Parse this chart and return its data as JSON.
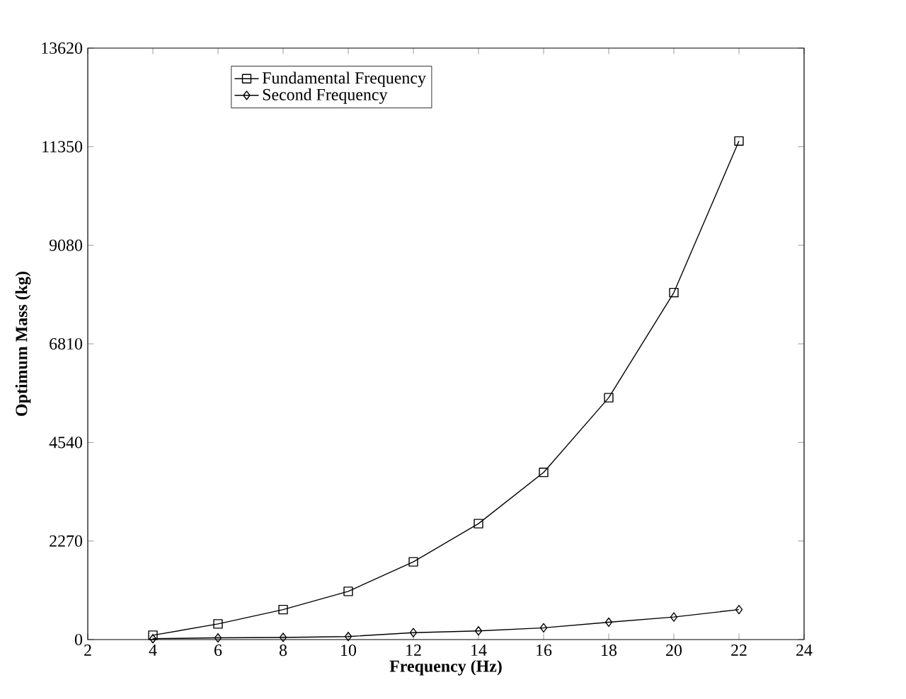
{
  "chart_data": {
    "type": "line",
    "xlabel": "Frequency (Hz)",
    "ylabel": "Optimum Mass (kg)",
    "x": [
      4,
      6,
      8,
      10,
      12,
      14,
      16,
      18,
      20,
      22
    ],
    "series": [
      {
        "name": "Fundamental Frequency",
        "color": "#000000",
        "marker": "square",
        "values": [
          100,
          360,
          690,
          1110,
          1790,
          2670,
          3850,
          5570,
          7990,
          11480
        ]
      },
      {
        "name": "Second Frequency",
        "color": "#000000",
        "marker": "diamond",
        "values": [
          20,
          40,
          50,
          70,
          160,
          200,
          270,
          400,
          520,
          690
        ]
      }
    ],
    "xlim": [
      2,
      24
    ],
    "xticks": [
      2,
      4,
      6,
      8,
      10,
      12,
      14,
      16,
      18,
      20,
      22,
      24
    ],
    "ylim": [
      0,
      13620
    ],
    "yticks": [
      0,
      2270,
      4540,
      6810,
      9080,
      11350,
      13620
    ],
    "grid": false,
    "legend": "top left",
    "line_style": "solid"
  }
}
